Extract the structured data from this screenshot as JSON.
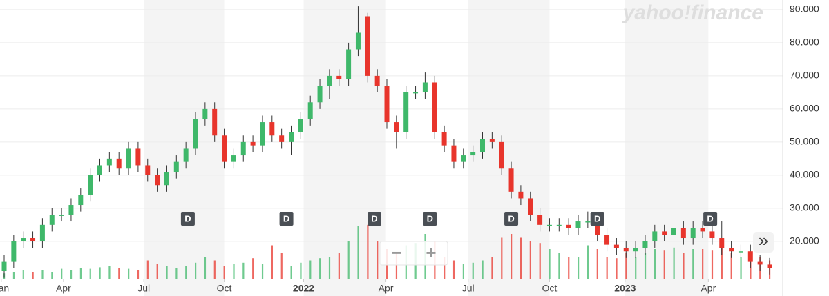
{
  "chart_data": {
    "type": "candlestick",
    "logo": "yahoo!finance",
    "up_color": "#3fb86a",
    "down_color": "#e8352c",
    "open": [
      11,
      14,
      20,
      21,
      20,
      25,
      28,
      28,
      31,
      34,
      40,
      43,
      45,
      42,
      48,
      43,
      40,
      37,
      41,
      44,
      48,
      57,
      60,
      52,
      44,
      46,
      50,
      49,
      56,
      52,
      50,
      53,
      57,
      62,
      67,
      70,
      69,
      78,
      88,
      70,
      67,
      56,
      53,
      65,
      65,
      68,
      53,
      49,
      44,
      46,
      47,
      51,
      50,
      42,
      35,
      33,
      28,
      25,
      25,
      25,
      24,
      26,
      26,
      22,
      19,
      18,
      17,
      18,
      20,
      23,
      22,
      24,
      21,
      24,
      23,
      21,
      18,
      17,
      17,
      14,
      13
    ],
    "high": [
      16,
      22,
      23,
      23,
      27,
      30,
      30,
      33,
      36,
      42,
      45,
      47,
      47,
      50,
      50,
      45,
      42,
      43,
      46,
      50,
      59,
      62,
      62,
      54,
      48,
      52,
      52,
      58,
      58,
      54,
      55,
      59,
      64,
      69,
      72,
      72,
      80,
      91,
      89,
      72,
      69,
      58,
      67,
      67,
      71,
      70,
      55,
      51,
      48,
      49,
      53,
      53,
      52,
      44,
      37,
      35,
      30,
      27,
      27,
      27,
      28,
      29,
      28,
      24,
      21,
      20,
      20,
      22,
      25,
      25,
      26,
      26,
      26,
      26,
      25,
      26,
      20,
      19,
      19,
      16,
      15
    ],
    "low": [
      9,
      12,
      18,
      18,
      18,
      23,
      26,
      26,
      29,
      32,
      38,
      41,
      40,
      40,
      41,
      38,
      35,
      35,
      39,
      42,
      46,
      55,
      50,
      42,
      42,
      44,
      47,
      47,
      50,
      48,
      46,
      51,
      55,
      60,
      63,
      67,
      67,
      76,
      68,
      65,
      54,
      48,
      51,
      63,
      63,
      51,
      47,
      42,
      42,
      44,
      45,
      48,
      40,
      33,
      31,
      26,
      23,
      23,
      23,
      22,
      22,
      24,
      20,
      17,
      16,
      15,
      15,
      16,
      18,
      20,
      20,
      19,
      19,
      21,
      19,
      16,
      15,
      15,
      12,
      11,
      10
    ],
    "close": [
      14,
      20,
      21,
      20,
      25,
      28,
      28,
      31,
      34,
      40,
      43,
      45,
      42,
      48,
      43,
      40,
      37,
      41,
      44,
      48,
      57,
      60,
      52,
      44,
      46,
      50,
      49,
      56,
      52,
      50,
      53,
      57,
      62,
      67,
      70,
      69,
      78,
      83,
      70,
      67,
      56,
      53,
      65,
      65,
      68,
      53,
      49,
      44,
      46,
      47,
      51,
      50,
      42,
      35,
      33,
      28,
      25,
      25,
      25,
      24,
      26,
      26,
      22,
      19,
      18,
      17,
      18,
      20,
      23,
      22,
      24,
      21,
      24,
      23,
      21,
      18,
      17,
      17,
      14,
      13,
      12
    ],
    "volume": [
      8,
      10,
      12,
      10,
      12,
      10,
      14,
      12,
      15,
      14,
      16,
      18,
      15,
      14,
      12,
      25,
      20,
      18,
      15,
      18,
      22,
      30,
      25,
      18,
      20,
      22,
      28,
      20,
      45,
      35,
      18,
      22,
      25,
      28,
      30,
      35,
      50,
      70,
      72,
      50,
      40,
      35,
      45,
      48,
      60,
      50,
      30,
      25,
      20,
      22,
      25,
      30,
      55,
      60,
      55,
      50,
      48,
      40,
      35,
      30,
      30,
      45,
      40,
      30,
      28,
      35,
      30,
      35,
      40,
      38,
      42,
      35,
      40,
      40,
      38,
      42,
      35,
      30,
      28,
      30,
      25
    ],
    "volume_lim": [
      0,
      100
    ],
    "ylim": [
      3.5,
      92.9
    ],
    "yticks": [
      {
        "value": 20,
        "label": "20.000"
      },
      {
        "value": 30,
        "label": "30.000"
      },
      {
        "value": 40,
        "label": "40.000"
      },
      {
        "value": 50,
        "label": "50.000"
      },
      {
        "value": 60,
        "label": "60.000"
      },
      {
        "value": 70,
        "label": "70.000"
      },
      {
        "value": 80,
        "label": "80.000"
      },
      {
        "value": 90,
        "label": "90.000"
      }
    ],
    "xticks": [
      {
        "value": -0.3,
        "label": "Jan"
      },
      {
        "value": 6.2,
        "label": "Apr"
      },
      {
        "value": 14.6,
        "label": "Jul"
      },
      {
        "value": 23.0,
        "label": "Oct"
      },
      {
        "value": 31.3,
        "label": "2022"
      },
      {
        "value": 39.9,
        "label": "Apr"
      },
      {
        "value": 48.5,
        "label": "Jul"
      },
      {
        "value": 57.0,
        "label": "Oct"
      },
      {
        "value": 64.9,
        "label": "2023"
      },
      {
        "value": 73.6,
        "label": "Apr"
      }
    ],
    "dividends": [
      {
        "x": 19.2,
        "label": "D"
      },
      {
        "x": 29.5,
        "label": "D"
      },
      {
        "x": 38.7,
        "label": "D"
      },
      {
        "x": 44.5,
        "label": "D"
      },
      {
        "x": 53.0,
        "label": "D"
      },
      {
        "x": 62.0,
        "label": "D"
      },
      {
        "x": 73.8,
        "label": "D"
      }
    ]
  },
  "controls": {
    "zoom_out": "−",
    "zoom_in": "+",
    "expand": "»"
  }
}
